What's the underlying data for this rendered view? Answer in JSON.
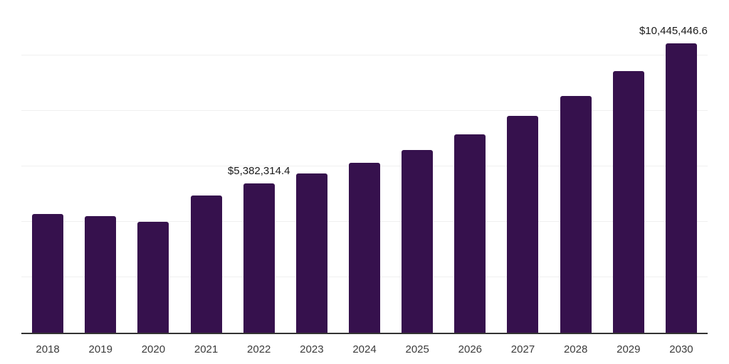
{
  "chart_data": {
    "type": "bar",
    "title": "",
    "categories": [
      "2018",
      "2019",
      "2020",
      "2021",
      "2022",
      "2023",
      "2024",
      "2025",
      "2026",
      "2027",
      "2028",
      "2029",
      "2030"
    ],
    "values": [
      4280000,
      4210000,
      4000000,
      4960000,
      5382314.4,
      5750000,
      6130000,
      6590000,
      7160000,
      7810000,
      8540000,
      9430000,
      10445446.6
    ],
    "data_labels": [
      {
        "category": "2022",
        "text": "$5,382,314.4",
        "dx": 0
      },
      {
        "category": "2030",
        "text": "$10,445,446.6",
        "dx": -11
      }
    ],
    "xlabel": "",
    "ylabel": "",
    "ylim": [
      0,
      12000000
    ],
    "gridline_values": [
      2000000,
      4000000,
      6000000,
      8000000,
      10000000,
      12000000
    ],
    "grid": true,
    "y_tick_labels_visible": false,
    "legend": "none"
  },
  "colors": {
    "background": "#ffffff",
    "bar": "#36114d",
    "gridline": "#f0f0f0",
    "axis_line": "#333333",
    "axis_label_text": "#3b3b3b",
    "data_label_text": "#1a1a1a"
  }
}
